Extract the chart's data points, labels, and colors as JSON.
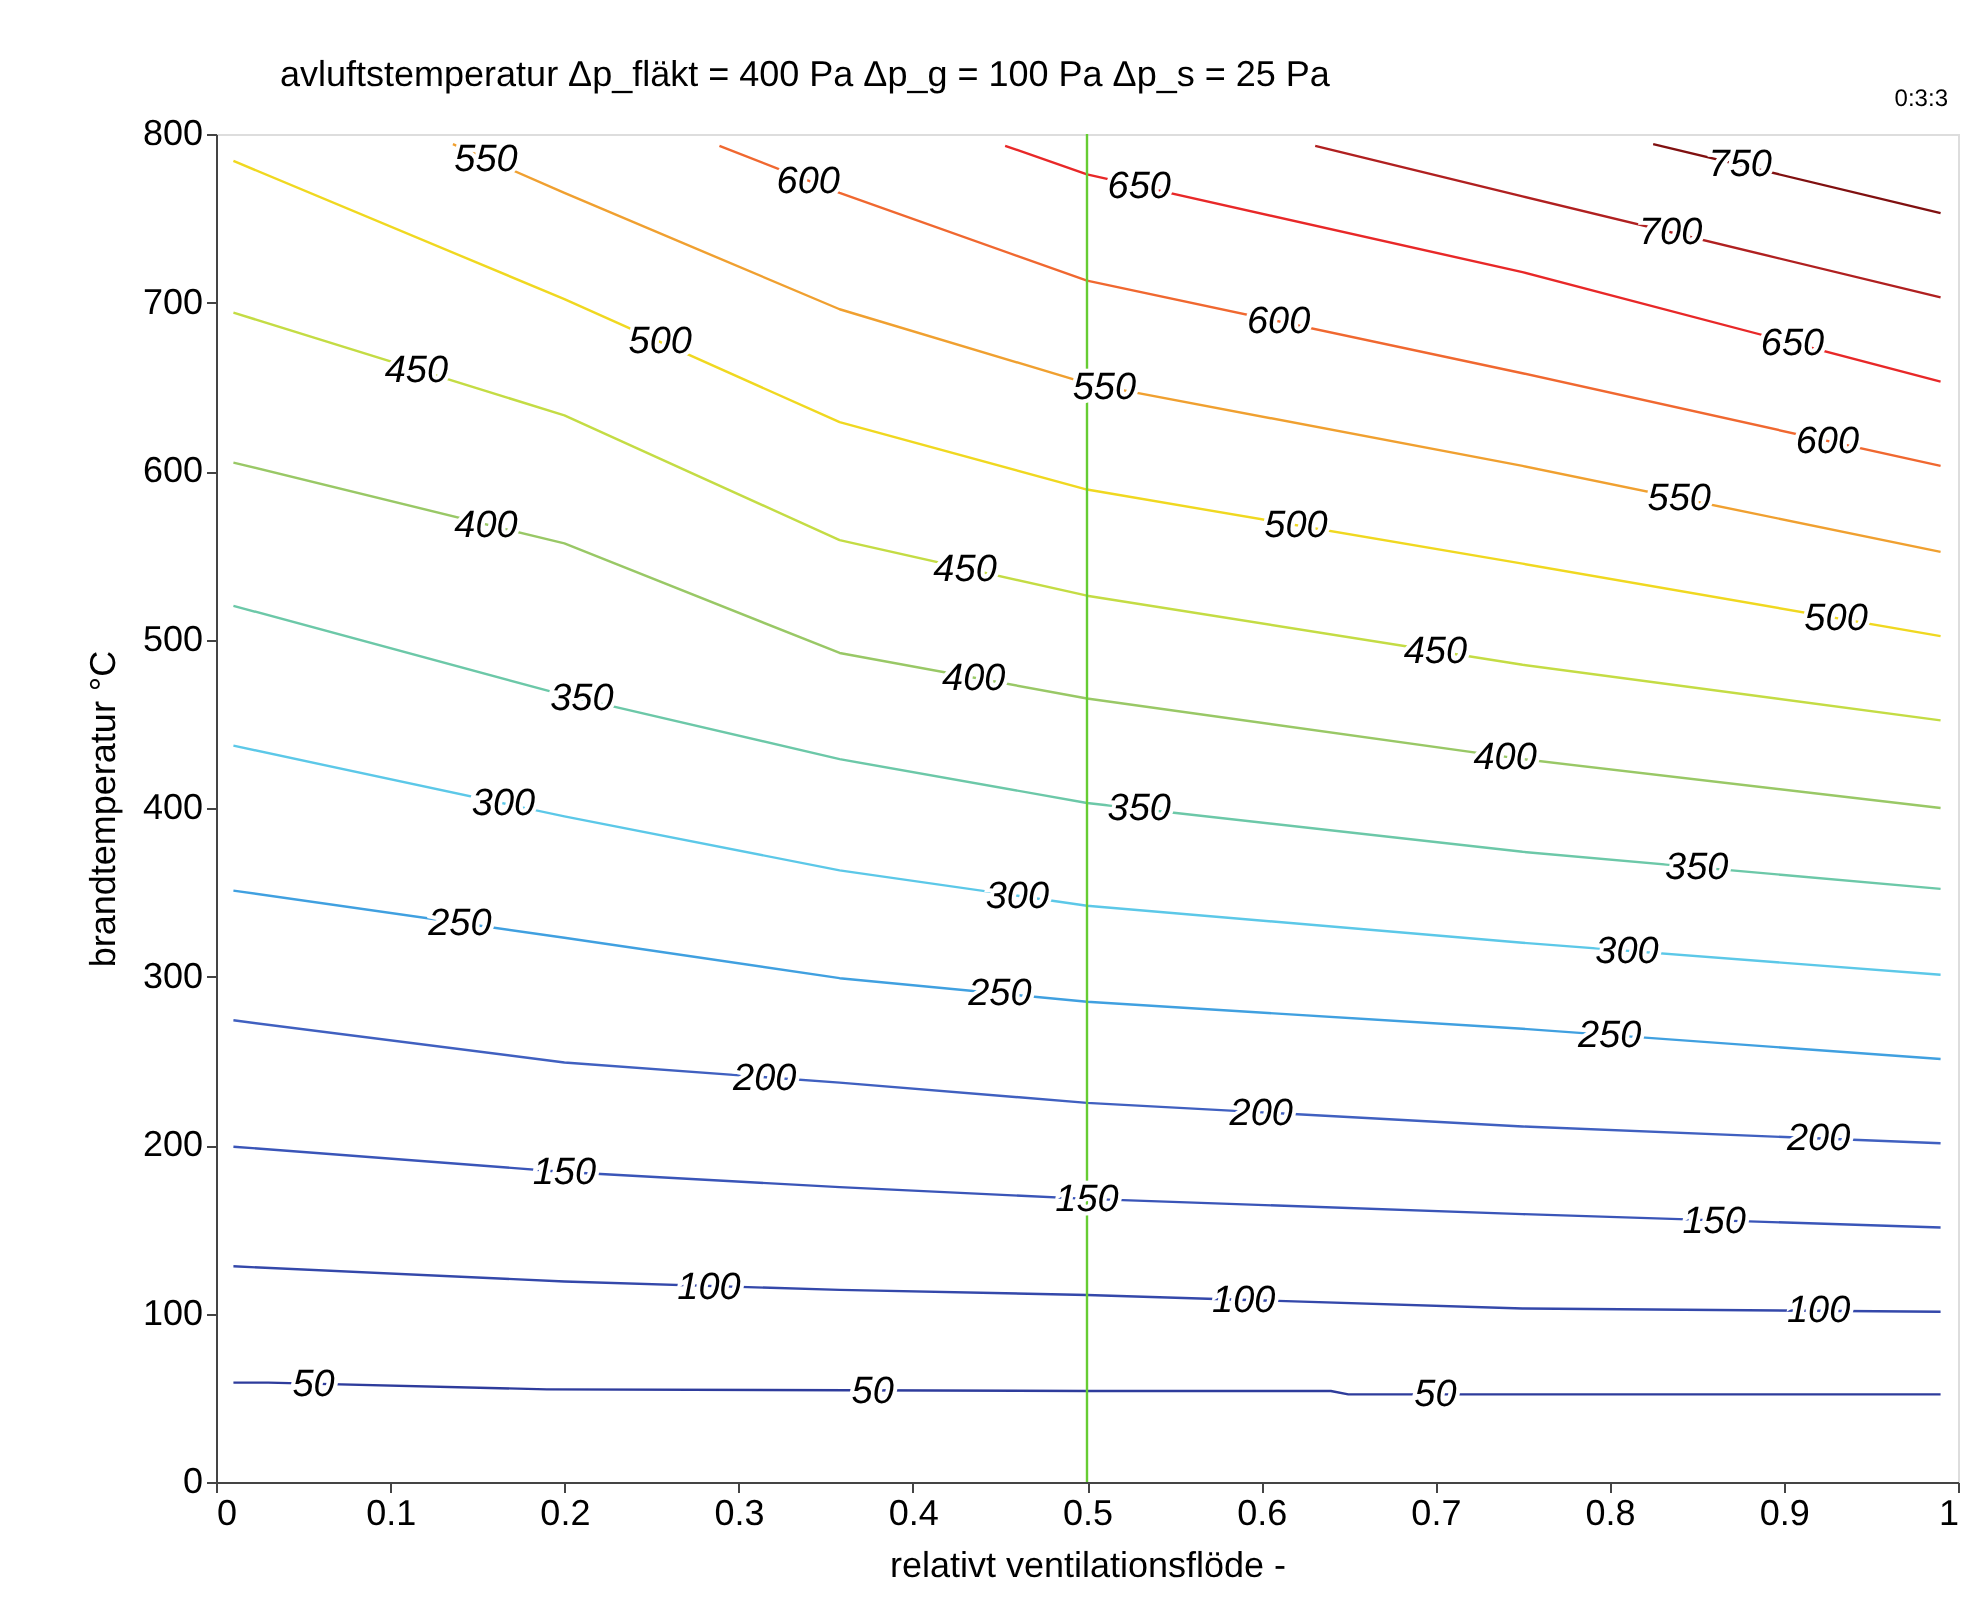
{
  "chart_data": {
    "type": "line",
    "title": "avluftstemperatur    Δp_fläkt = 400 Pa   Δp_g = 100 Pa   Δp_s = 25 Pa",
    "xlabel": "relativt ventilationsflöde  -",
    "ylabel": "brandtemperatur  °C",
    "xlim": [
      0,
      1
    ],
    "xticks": [
      0,
      0.1,
      0.2,
      0.3,
      0.4,
      0.5,
      0.6,
      0.7,
      0.8,
      0.9,
      1
    ],
    "ylim": [
      0,
      800
    ],
    "yticks": [
      0,
      100,
      200,
      300,
      400,
      500,
      600,
      700,
      800
    ],
    "grid": false,
    "legend": false,
    "marker": "none",
    "line_style": "solid",
    "series": [
      {
        "color": "#2e3c9c",
        "x": [
          0.01,
          0.03,
          0.19,
          0.5,
          0.64,
          0.65,
          0.99
        ],
        "values": [
          59,
          59,
          55,
          54,
          54,
          52,
          52
        ]
      },
      {
        "color": "#3448aa",
        "x": [
          0.01,
          0.2,
          0.358,
          0.5,
          0.75,
          0.99
        ],
        "values": [
          128,
          119,
          114,
          111,
          103,
          101
        ]
      },
      {
        "color": "#3a55b8",
        "x": [
          0.01,
          0.2,
          0.358,
          0.5,
          0.75,
          0.99
        ],
        "values": [
          199,
          184,
          175,
          168,
          159,
          151
        ]
      },
      {
        "color": "#4060c0",
        "x": [
          0.01,
          0.2,
          0.358,
          0.5,
          0.75,
          0.99
        ],
        "values": [
          274,
          249,
          237,
          225,
          211,
          201
        ]
      },
      {
        "color": "#40a0e0",
        "x": [
          0.01,
          0.2,
          0.358,
          0.5,
          0.75,
          0.99
        ],
        "values": [
          351,
          323,
          299,
          285,
          269,
          251
        ]
      },
      {
        "color": "#5cc8e8",
        "x": [
          0.01,
          0.2,
          0.358,
          0.5,
          0.75,
          0.99
        ],
        "values": [
          437,
          395,
          363,
          342,
          320,
          301
        ]
      },
      {
        "color": "#6cc8a8",
        "x": [
          0.01,
          0.2,
          0.358,
          0.5,
          0.75,
          0.99
        ],
        "values": [
          520,
          467,
          429,
          403,
          374,
          352
        ]
      },
      {
        "color": "#99c866",
        "x": [
          0.01,
          0.2,
          0.358,
          0.5,
          0.75,
          0.99
        ],
        "values": [
          605,
          557,
          492,
          465,
          429,
          400
        ]
      },
      {
        "color": "#c4dc44",
        "x": [
          0.01,
          0.2,
          0.358,
          0.5,
          0.75,
          0.99
        ],
        "values": [
          694,
          633,
          559,
          526,
          485,
          452
        ]
      },
      {
        "color": "#f0d820",
        "x": [
          0.01,
          0.2,
          0.358,
          0.5,
          0.75,
          0.99
        ],
        "values": [
          784,
          702,
          629,
          589,
          545,
          502
        ]
      },
      {
        "color": "#f0a030",
        "x": [
          0.136,
          0.2,
          0.358,
          0.5,
          0.75,
          0.99
        ],
        "values": [
          794,
          765,
          696,
          652,
          603,
          552
        ]
      },
      {
        "color": "#f06830",
        "x": [
          0.289,
          0.358,
          0.5,
          0.75,
          0.99
        ],
        "values": [
          793,
          765,
          713,
          658,
          603
        ]
      },
      {
        "color": "#e82828",
        "x": [
          0.453,
          0.5,
          0.75,
          0.99
        ],
        "values": [
          793,
          776,
          718,
          653
        ]
      },
      {
        "color": "#b02020",
        "x": [
          0.631,
          0.75,
          0.99
        ],
        "values": [
          793,
          763,
          703
        ]
      },
      {
        "color": "#801010",
        "x": [
          0.825,
          0.99
        ],
        "values": [
          794,
          753
        ]
      }
    ],
    "ref_lines": [
      {
        "axis": "x",
        "value": 0.5,
        "color": "#66cc33"
      }
    ],
    "annotations": [
      "0:3:3",
      {
        "text": "50",
        "x": 0.056,
        "y": 58
      },
      {
        "text": "50",
        "x": 0.377,
        "y": 54
      },
      {
        "text": "50",
        "x": 0.7,
        "y": 52
      },
      {
        "text": "100",
        "x": 0.283,
        "y": 116
      },
      {
        "text": "100",
        "x": 0.59,
        "y": 108
      },
      {
        "text": "100",
        "x": 0.92,
        "y": 102
      },
      {
        "text": "150",
        "x": 0.2,
        "y": 184
      },
      {
        "text": "150",
        "x": 0.5,
        "y": 168
      },
      {
        "text": "150",
        "x": 0.86,
        "y": 155
      },
      {
        "text": "200",
        "x": 0.315,
        "y": 240
      },
      {
        "text": "200",
        "x": 0.6,
        "y": 219
      },
      {
        "text": "200",
        "x": 0.92,
        "y": 204
      },
      {
        "text": "250",
        "x": 0.14,
        "y": 332
      },
      {
        "text": "250",
        "x": 0.45,
        "y": 290
      },
      {
        "text": "250",
        "x": 0.8,
        "y": 265
      },
      {
        "text": "300",
        "x": 0.165,
        "y": 403
      },
      {
        "text": "300",
        "x": 0.46,
        "y": 348
      },
      {
        "text": "300",
        "x": 0.81,
        "y": 315
      },
      {
        "text": "350",
        "x": 0.21,
        "y": 465
      },
      {
        "text": "350",
        "x": 0.53,
        "y": 400
      },
      {
        "text": "350",
        "x": 0.85,
        "y": 365
      },
      {
        "text": "400",
        "x": 0.155,
        "y": 568
      },
      {
        "text": "400",
        "x": 0.435,
        "y": 477
      },
      {
        "text": "400",
        "x": 0.74,
        "y": 430
      },
      {
        "text": "450",
        "x": 0.115,
        "y": 660
      },
      {
        "text": "450",
        "x": 0.43,
        "y": 542
      },
      {
        "text": "450",
        "x": 0.7,
        "y": 493
      },
      {
        "text": "500",
        "x": 0.255,
        "y": 677
      },
      {
        "text": "500",
        "x": 0.62,
        "y": 568
      },
      {
        "text": "500",
        "x": 0.93,
        "y": 513
      },
      {
        "text": "550",
        "x": 0.155,
        "y": 785
      },
      {
        "text": "550",
        "x": 0.51,
        "y": 650
      },
      {
        "text": "550",
        "x": 0.84,
        "y": 584
      },
      {
        "text": "600",
        "x": 0.34,
        "y": 772
      },
      {
        "text": "600",
        "x": 0.61,
        "y": 689
      },
      {
        "text": "600",
        "x": 0.925,
        "y": 618
      },
      {
        "text": "650",
        "x": 0.53,
        "y": 769
      },
      {
        "text": "650",
        "x": 0.905,
        "y": 676
      },
      {
        "text": "700",
        "x": 0.835,
        "y": 742
      },
      {
        "text": "750",
        "x": 0.875,
        "y": 782
      }
    ]
  }
}
